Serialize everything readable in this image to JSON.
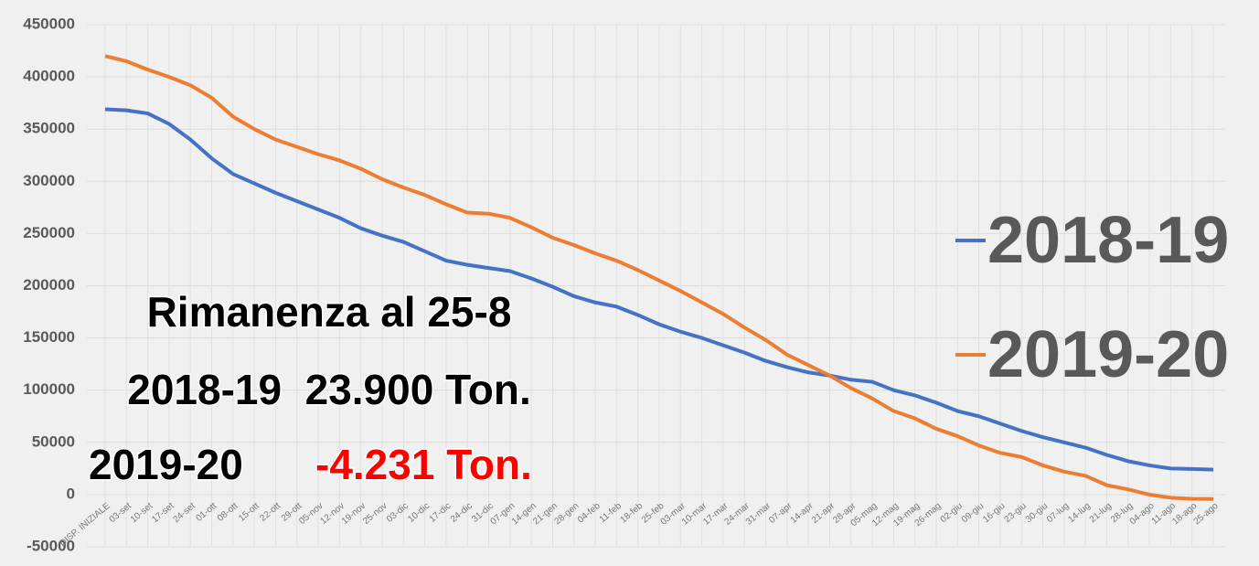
{
  "chart_data": {
    "type": "line",
    "categories": [
      "DISP. INIZIALE",
      "03-set",
      "10-set",
      "17-set",
      "24-set",
      "01-ott",
      "08-ott",
      "15-ott",
      "22-ott",
      "29-ott",
      "05-nov",
      "12-nov",
      "19-nov",
      "25-nov",
      "03-dic",
      "10-dic",
      "17-dic",
      "24-dic",
      "31-dic",
      "07-gen",
      "14-gen",
      "21-gen",
      "28-gen",
      "04-feb",
      "11-feb",
      "18-feb",
      "25-feb",
      "03-mar",
      "10-mar",
      "17-mar",
      "24-mar",
      "31-mar",
      "07-apr",
      "14-apr",
      "21-apr",
      "28-apr",
      "05-mag",
      "12-mag",
      "19-mag",
      "26-mag",
      "02-giu",
      "09-giu",
      "16-giu",
      "23-giu",
      "30-giu",
      "07-lug",
      "14-lug",
      "21-lug",
      "28-lug",
      "04-ago",
      "11-ago",
      "18-ago",
      "25-ago"
    ],
    "series": [
      {
        "name": "2018-19",
        "color": "#4472c4",
        "values": [
          369000,
          368000,
          365000,
          355000,
          340000,
          322000,
          307000,
          298000,
          289000,
          281000,
          273000,
          265000,
          255000,
          248000,
          242000,
          233000,
          224000,
          220000,
          217000,
          214000,
          207000,
          199000,
          190000,
          184000,
          180000,
          172000,
          163000,
          156000,
          150000,
          143000,
          136000,
          128000,
          122000,
          117000,
          114000,
          110000,
          108000,
          100000,
          95000,
          88000,
          80000,
          75000,
          68000,
          61000,
          55000,
          50000,
          45000,
          38000,
          32000,
          28000,
          25000,
          24500,
          23900
        ]
      },
      {
        "name": "2019-20",
        "color": "#ed7d31",
        "values": [
          420000,
          415000,
          407000,
          400000,
          392000,
          380000,
          362000,
          350000,
          340000,
          333000,
          326000,
          320000,
          312000,
          302000,
          294000,
          287000,
          278000,
          270000,
          269000,
          265000,
          256000,
          246000,
          239000,
          231000,
          224000,
          215000,
          205000,
          195000,
          184000,
          173000,
          160000,
          148000,
          134000,
          124000,
          114000,
          102000,
          92000,
          80000,
          73000,
          63000,
          56000,
          47000,
          40000,
          36000,
          28000,
          22000,
          18000,
          9000,
          5000,
          0,
          -3000,
          -4000,
          -4231
        ]
      }
    ],
    "ylim": [
      -50000,
      450000
    ],
    "yticks": [
      -50000,
      0,
      50000,
      100000,
      150000,
      200000,
      250000,
      300000,
      350000,
      400000,
      450000
    ],
    "grid": true,
    "legend": "right",
    "annotations": [
      {
        "text": "Rimanenza al 25-8",
        "color": "#000000"
      },
      {
        "text": "2018-19  23.900 Ton.",
        "color": "#000000"
      },
      {
        "text": "2019-20",
        "color": "#000000"
      },
      {
        "text": "-4.231 Ton.",
        "color": "#ff0000"
      }
    ]
  }
}
